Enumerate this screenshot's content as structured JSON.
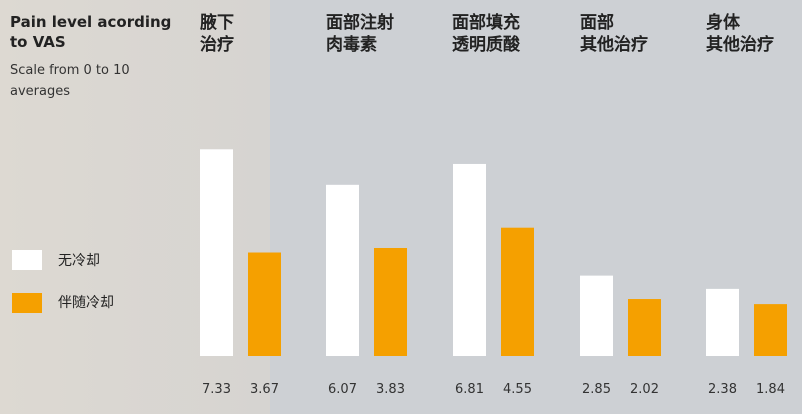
{
  "title_line1": "Pain level acording",
  "title_line2": "to VAS",
  "subtitle_line1": "Scale from 0 to 10",
  "subtitle_line2": "averages",
  "colors": {
    "white": "#ffffff",
    "orange": "#f5a000"
  },
  "chart_data": {
    "type": "bar",
    "categories": [
      [
        "腋下",
        "治疗"
      ],
      [
        "面部注射",
        "肉毒素"
      ],
      [
        "面部填充",
        "透明质酸"
      ],
      [
        "面部",
        "其他治疗"
      ],
      [
        "身体",
        "其他治疗"
      ]
    ],
    "series": [
      {
        "name": "无冷却",
        "values": [
          7.33,
          6.07,
          6.81,
          2.85,
          2.38
        ]
      },
      {
        "name": "伴随冷却",
        "values": [
          3.67,
          3.83,
          4.55,
          2.02,
          1.84
        ]
      }
    ],
    "value_labels": [
      [
        "7.33",
        "3.67"
      ],
      [
        "6.07",
        "3.83"
      ],
      [
        "6.81",
        "4.55"
      ],
      [
        "2.85",
        "2.02"
      ],
      [
        "2.38",
        "1.84"
      ]
    ],
    "ylim": [
      0,
      10
    ],
    "grid": false,
    "legend_position": "left"
  }
}
